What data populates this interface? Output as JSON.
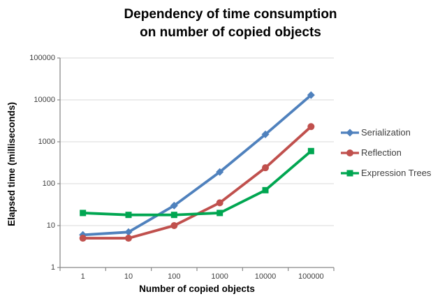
{
  "title": {
    "line1": "Dependency of time consumption",
    "line2": "on number of copied objects"
  },
  "chart_data": {
    "type": "line",
    "x_scale": "categorical-log-labels",
    "y_scale": "log",
    "categories": [
      "1",
      "10",
      "100",
      "1000",
      "10000",
      "100000"
    ],
    "series": [
      {
        "name": "Serialization",
        "color": "#4F81BD",
        "marker": "diamond",
        "values": [
          6,
          7,
          30,
          190,
          1500,
          13000
        ]
      },
      {
        "name": "Reflection",
        "color": "#C0504D",
        "marker": "circle",
        "values": [
          5,
          5,
          10,
          35,
          240,
          2300
        ]
      },
      {
        "name": "Expression Trees",
        "color": "#00A651",
        "marker": "square",
        "values": [
          20,
          18,
          18,
          20,
          70,
          600
        ]
      }
    ],
    "title": "Dependency of time consumption on number of copied objects",
    "xlabel": "Number of copied objects",
    "ylabel": "Elapsed time (milliseconds)",
    "y_ticks": [
      "1",
      "10",
      "100",
      "1000",
      "10000",
      "100000"
    ],
    "ylim": [
      1,
      100000
    ],
    "grid": "horizontal",
    "legend_position": "right"
  },
  "colors": {
    "grid": "#D9D9D9",
    "axis": "#898989",
    "tick_text": "#3f3f3f",
    "title_text": "#000000",
    "background": "#ffffff"
  }
}
